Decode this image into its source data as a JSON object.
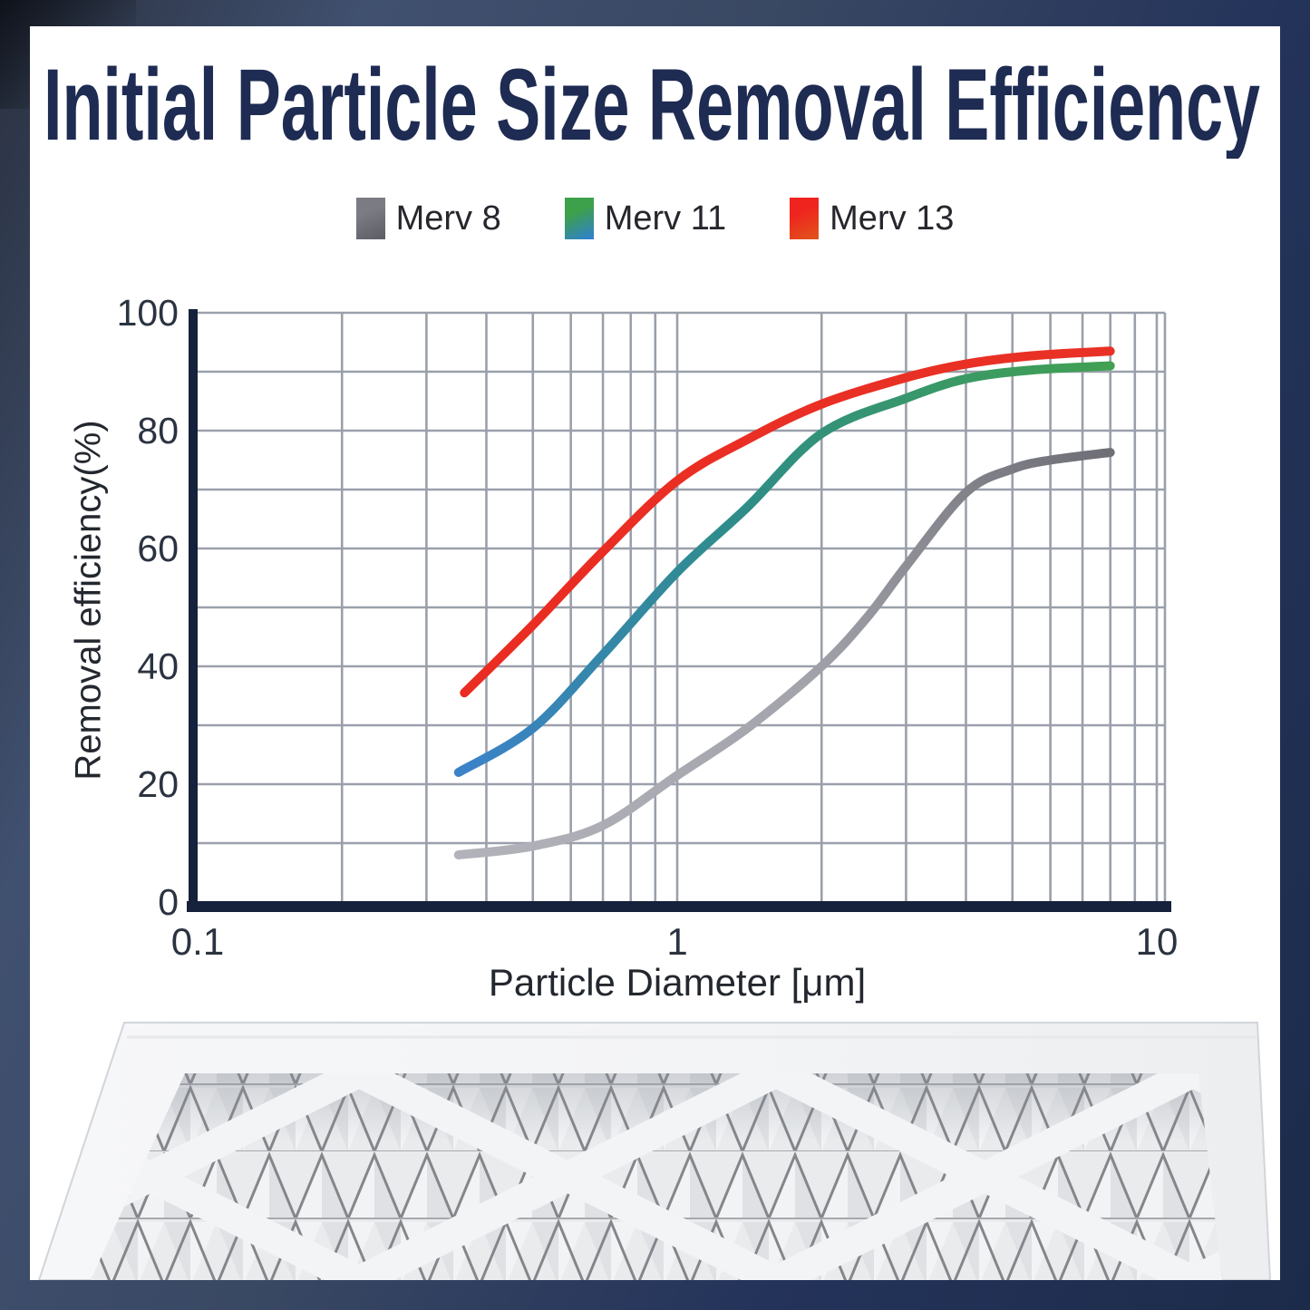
{
  "title": {
    "text": "Initial Particle Size Removal Efficiency",
    "color": "#1e2b52"
  },
  "legend": {
    "items": [
      {
        "label": "Merv 8",
        "swatch_colors": [
          "#7b7b83",
          "#5c5c64"
        ]
      },
      {
        "label": "Merv 11",
        "swatch_colors": [
          "#3da04a",
          "#2e7fd6"
        ]
      },
      {
        "label": "Merv 13",
        "swatch_colors": [
          "#ef241e",
          "#e0561b"
        ]
      }
    ]
  },
  "chart_data": {
    "type": "line",
    "x_scale": "log",
    "xlim": [
      0.1,
      10
    ],
    "ylim": [
      0,
      100
    ],
    "xlabel": "Particle Diameter [μm]",
    "ylabel": "Removal efficiency(%)",
    "grid": true,
    "legend_position": "top",
    "x_ticks": [
      {
        "value": 0.1,
        "label": "0.1"
      },
      {
        "value": 1,
        "label": "1"
      },
      {
        "value": 10,
        "label": "10"
      }
    ],
    "y_ticks": [
      {
        "value": 100,
        "label": "100"
      },
      {
        "value": 80,
        "label": "80"
      },
      {
        "value": 60,
        "label": "60"
      },
      {
        "value": 40,
        "label": "40"
      },
      {
        "value": 20,
        "label": "20"
      },
      {
        "value": 0,
        "label": "0"
      }
    ],
    "x_minor_grid": [
      0.2,
      0.3,
      0.4,
      0.5,
      0.6,
      0.7,
      0.8,
      0.9,
      2,
      3,
      4,
      5,
      6,
      7,
      8,
      9
    ],
    "x_major_grid": [
      1,
      10
    ],
    "y_grid": [
      10,
      20,
      30,
      40,
      50,
      60,
      70,
      80,
      90,
      100
    ],
    "series": [
      {
        "name": "Merv 8",
        "colors": [
          "#b2b2ba",
          "#a3a3ab",
          "#6e6e76"
        ],
        "points": [
          [
            0.35,
            8
          ],
          [
            0.5,
            9.5
          ],
          [
            0.7,
            13
          ],
          [
            1,
            21.5
          ],
          [
            1.4,
            29.5
          ],
          [
            2,
            40
          ],
          [
            2.5,
            48.5
          ],
          [
            3,
            57
          ],
          [
            4,
            69.5
          ],
          [
            5,
            73.5
          ],
          [
            6,
            75
          ],
          [
            8,
            76.3
          ]
        ]
      },
      {
        "name": "Merv 11",
        "colors": [
          "#3b82c9",
          "#2e8d87",
          "#41a052"
        ],
        "points": [
          [
            0.35,
            22
          ],
          [
            0.5,
            29.5
          ],
          [
            0.7,
            42
          ],
          [
            1,
            56
          ],
          [
            1.4,
            67
          ],
          [
            2,
            79.5
          ],
          [
            3,
            85.5
          ],
          [
            4,
            88.8
          ],
          [
            5.5,
            90.3
          ],
          [
            8,
            91
          ]
        ]
      },
      {
        "name": "Merv 13",
        "colors": [
          "#ea2c22",
          "#e93125"
        ],
        "points": [
          [
            0.36,
            35.5
          ],
          [
            0.5,
            47
          ],
          [
            0.7,
            59.5
          ],
          [
            1,
            71.5
          ],
          [
            1.4,
            78.5
          ],
          [
            2,
            84.5
          ],
          [
            3,
            89
          ],
          [
            4,
            91.3
          ],
          [
            5.5,
            92.7
          ],
          [
            8,
            93.5
          ]
        ]
      }
    ]
  },
  "colors": {
    "grid": "#9aa0ab",
    "axis": "#16213c",
    "tick_text": "#2b3340"
  },
  "footer": {
    "image_alt": "pleated air filter with white diamond lattice frame"
  }
}
